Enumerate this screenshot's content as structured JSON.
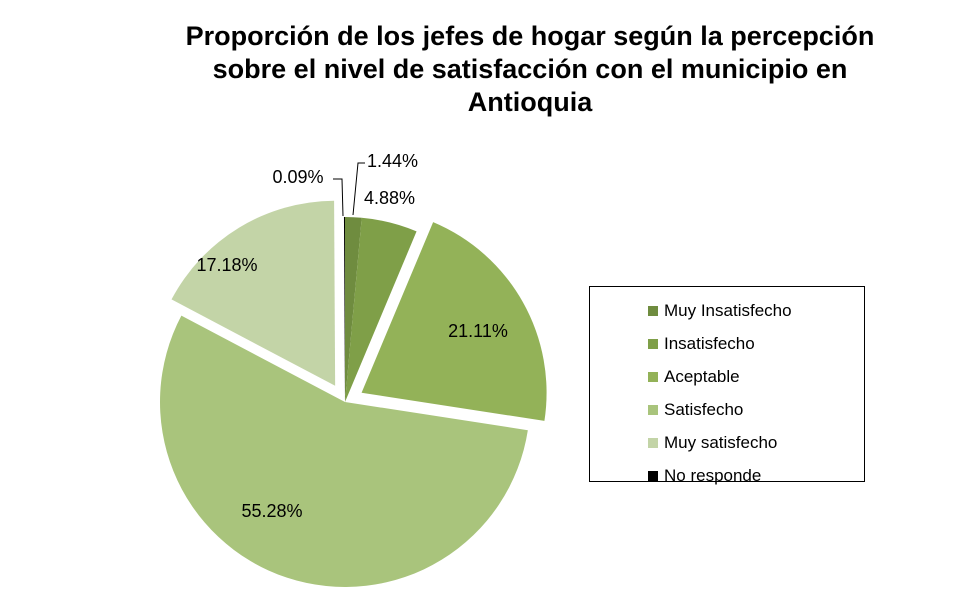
{
  "chart_data": {
    "type": "pie",
    "title_lines": [
      "Proporción de los jefes de hogar según la percepción",
      "sobre el nivel de satisfacción con el municipio en",
      "Antioquia"
    ],
    "legend_position": "right",
    "slices": [
      {
        "label": "Muy Insatisfecho",
        "value": 1.44,
        "value_label": "1.44%",
        "color": "#6f8c3f"
      },
      {
        "label": "Insatisfecho",
        "value": 4.88,
        "value_label": "4.88%",
        "color": "#7f9f48"
      },
      {
        "label": "Aceptable",
        "value": 21.11,
        "value_label": "21.11%",
        "color": "#93b258"
      },
      {
        "label": "Satisfecho",
        "value": 55.28,
        "value_label": "55.28%",
        "color": "#a9c47c"
      },
      {
        "label": "Muy satisfecho",
        "value": 17.18,
        "value_label": "17.18%",
        "color": "#c3d4a7"
      },
      {
        "label": "No responde",
        "value": 0.09,
        "value_label": "0.09%",
        "color": "#000000"
      }
    ]
  }
}
